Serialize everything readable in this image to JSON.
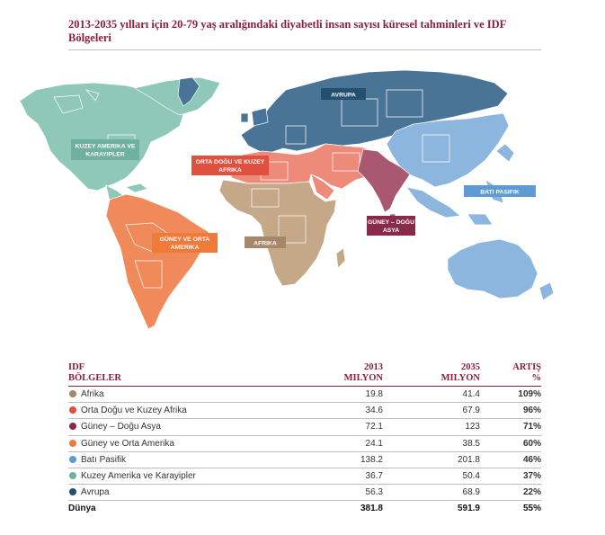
{
  "title": "2013-2035 yılları için 20-79 yaş aralığındaki diyabetli insan sayısı küresel tahminleri ve IDF Bölgeleri",
  "map_labels": {
    "avrupa": "AVRUPA",
    "kuzey_amerika": [
      "KUZEY AMERIKA VE",
      "KARAYIPLER"
    ],
    "orta_dogu": [
      "ORTA DOĞU VE KUZEY",
      "AFRIKA"
    ],
    "bati_pasifik": "BATI PASIFIK",
    "guney_dogu_asya": [
      "GÜNEY – DOĞU",
      "ASYA"
    ],
    "guney_orta_amerika": [
      "GÜNEY VE ORTA",
      "AMERIKA"
    ],
    "afrika": "AFRIKA"
  },
  "region_colors": {
    "afrika": "#c4a888",
    "orta_dogu": "#ee8a7a",
    "guney_dogu_asya": "#a85870",
    "guney_orta_amerika": "#f08a5a",
    "bati_pasifik": "#8cb6dd",
    "kuzey_amerika": "#8fc8b8",
    "avrupa": "#3d6a8a"
  },
  "label_colors": {
    "afrika": "#a5876a",
    "orta_dogu": "#e0503e",
    "guney_dogu_asya": "#8a2a4a",
    "guney_orta_amerika": "#f07a3a",
    "bati_pasifik": "#5e9ad4",
    "kuzey_amerika": "#6fb0a0",
    "avrupa": "#23506e"
  },
  "table": {
    "header": {
      "c1": [
        "IDF",
        "BÖLGELER"
      ],
      "c2": [
        "2013",
        "MILYON"
      ],
      "c3": [
        "2035",
        "MILYON"
      ],
      "c4": [
        "ARTIŞ",
        "%"
      ]
    },
    "rows": [
      {
        "region": "Afrika",
        "y2013": "19.8",
        "y2035": "41.4",
        "pct": "109%",
        "color": "#a5876a"
      },
      {
        "region": "Orta Doğu ve Kuzey Afrika",
        "y2013": "34.6",
        "y2035": "67.9",
        "pct": "96%",
        "color": "#e0503e"
      },
      {
        "region": "Güney – Doğu Asya",
        "y2013": "72.1",
        "y2035": "123",
        "pct": "71%",
        "color": "#8a2a4a"
      },
      {
        "region": "Güney ve Orta Amerika",
        "y2013": "24.1",
        "y2035": "38.5",
        "pct": "60%",
        "color": "#f07a3a"
      },
      {
        "region": "Batı Pasifik",
        "y2013": "138.2",
        "y2035": "201.8",
        "pct": "46%",
        "color": "#5e9ad4"
      },
      {
        "region": "Kuzey Amerika ve Karayipler",
        "y2013": "36.7",
        "y2035": "50.4",
        "pct": "37%",
        "color": "#6fb0a0"
      },
      {
        "region": "Avrupa",
        "y2013": "56.3",
        "y2035": "68.9",
        "pct": "22%",
        "color": "#23506e"
      }
    ],
    "total": {
      "region": "Dünya",
      "y2013": "381.8",
      "y2035": "591.9",
      "pct": "55%"
    }
  }
}
